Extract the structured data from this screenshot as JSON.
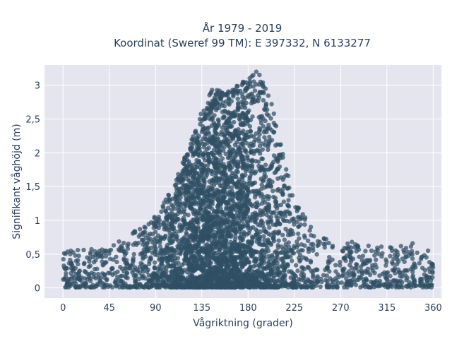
{
  "chart_data": {
    "type": "scatter",
    "title_line1": "År 1979 - 2019",
    "title_line2": "Koordinat (Sweref 99 TM): E 397332, N 6133277",
    "xlabel": "Vågriktning (grader)",
    "ylabel": "Signifikant våghöjd (m)",
    "xlim": [
      -18,
      368
    ],
    "ylim": [
      -0.15,
      3.3
    ],
    "x_ticks": [
      0,
      45,
      90,
      135,
      180,
      225,
      270,
      315,
      360
    ],
    "x_tick_labels": [
      "0",
      "45",
      "90",
      "135",
      "180",
      "225",
      "270",
      "315",
      "360"
    ],
    "y_ticks": [
      0,
      0.5,
      1,
      1.5,
      2,
      2.5,
      3
    ],
    "y_tick_labels": [
      "0",
      "0,5",
      "1",
      "1,5",
      "2",
      "2,5",
      "3"
    ],
    "grid": true,
    "background_color": "#e5e5f0",
    "marker_color": "#2f4f64",
    "envelope_approx": [
      {
        "x": 0,
        "max_y": 0.55
      },
      {
        "x": 45,
        "max_y": 0.6
      },
      {
        "x": 90,
        "max_y": 1.05
      },
      {
        "x": 110,
        "max_y": 1.6
      },
      {
        "x": 125,
        "max_y": 2.2
      },
      {
        "x": 135,
        "max_y": 2.65
      },
      {
        "x": 145,
        "max_y": 2.95
      },
      {
        "x": 160,
        "max_y": 2.9
      },
      {
        "x": 180,
        "max_y": 3.1
      },
      {
        "x": 190,
        "max_y": 3.2
      },
      {
        "x": 200,
        "max_y": 2.9
      },
      {
        "x": 210,
        "max_y": 2.3
      },
      {
        "x": 225,
        "max_y": 1.3
      },
      {
        "x": 245,
        "max_y": 0.85
      },
      {
        "x": 270,
        "max_y": 0.7
      },
      {
        "x": 315,
        "max_y": 0.6
      },
      {
        "x": 340,
        "max_y": 0.66
      },
      {
        "x": 360,
        "max_y": 0.35
      }
    ],
    "highlight_points": [
      [
        7,
        0.5
      ],
      [
        12,
        0.48
      ],
      [
        33,
        0.5
      ],
      [
        41,
        0.55
      ],
      [
        45,
        0.55
      ],
      [
        56,
        0.6
      ],
      [
        89,
        1.05
      ],
      [
        95,
        0.75
      ],
      [
        145,
        2.93
      ],
      [
        150,
        2.75
      ],
      [
        160,
        2.85
      ],
      [
        165,
        2.93
      ],
      [
        170,
        2.9
      ],
      [
        175,
        3.05
      ],
      [
        182,
        2.98
      ],
      [
        185,
        3.15
      ],
      [
        188,
        3.2
      ],
      [
        192,
        3.05
      ],
      [
        197,
        2.95
      ],
      [
        230,
        1.05
      ],
      [
        240,
        0.85
      ],
      [
        255,
        0.65
      ],
      [
        262,
        0.6
      ],
      [
        281,
        0.68
      ],
      [
        284,
        0.6
      ],
      [
        300,
        0.55
      ],
      [
        320,
        0.55
      ],
      [
        340,
        0.66
      ],
      [
        355,
        0.55
      ]
    ]
  }
}
